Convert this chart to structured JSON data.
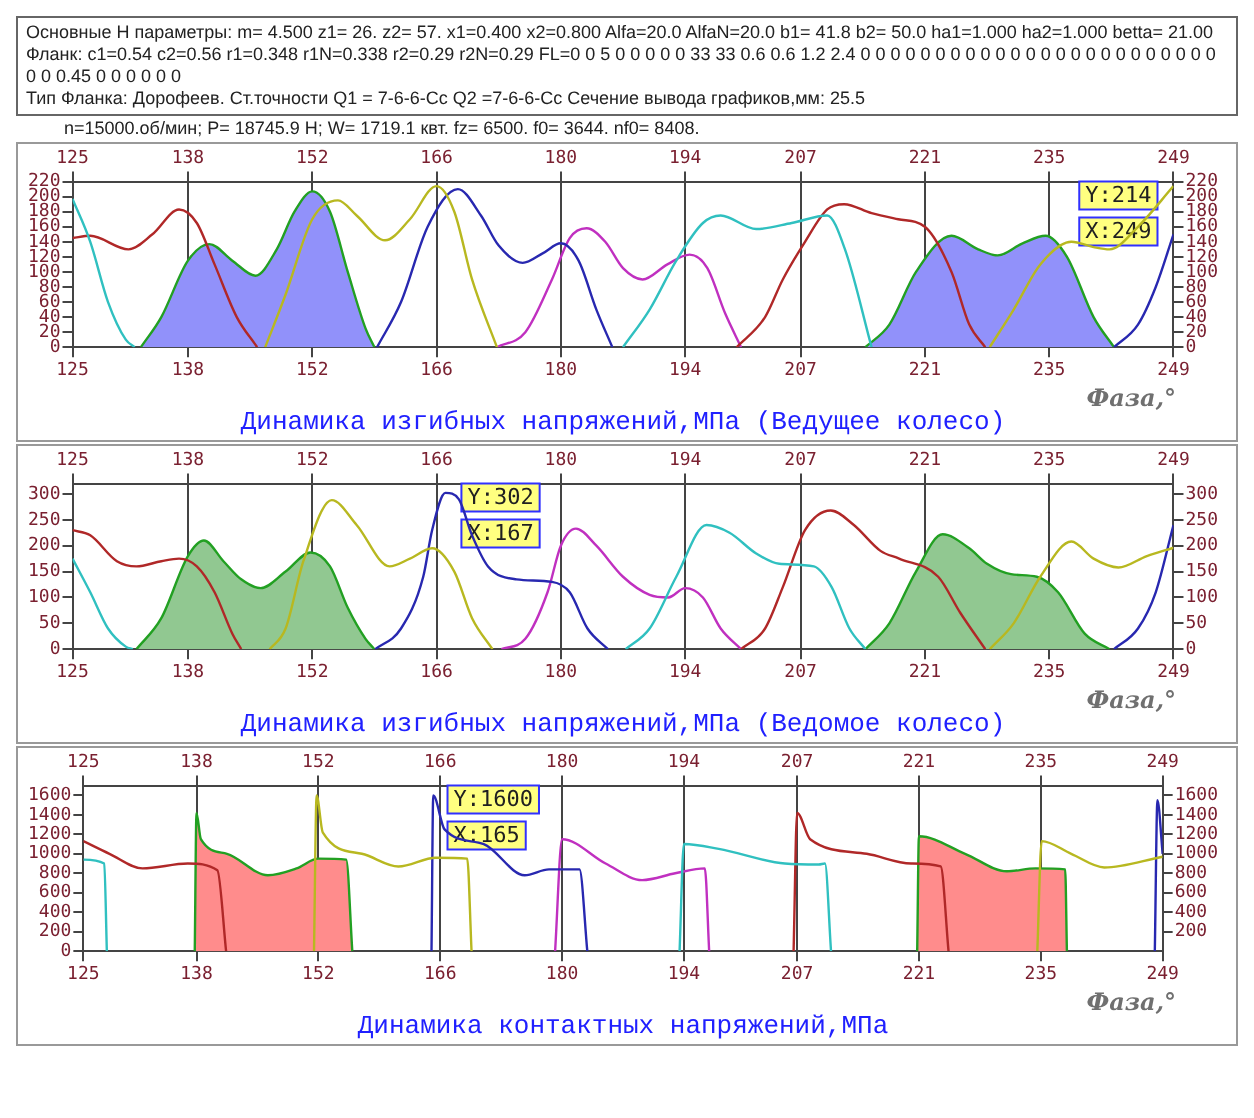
{
  "chart_data": [
    {
      "type": "other",
      "annotations": [
        "Основные Н параметры: m= 4.500 z1=  26. z2=  57. x1=0.400 x2=0.800 Alfa=20.0 AlfaN=20.0 b1= 41.8 b2= 50.0 ha1=1.000 ha2=1.000 betta= 21.00",
        "Фланк:  c1=0.54 c2=0.56 r1=0.348 r1N=0.338 r2=0.29 r2N=0.29 FL=0 0 5 0 0 0 0 0 33 33 0.6 0.6 1.2 2.4 0 0 0 0 0 0 0 0 0 0 0 0 0 0 0 0 0 0 0 0 0 0 0 0 0 0 0.45 0 0 0 0 0 0",
        "Тип Фланка: Дорофеев. Ст.точности Q1 = 7-6-6-Сс Q2 =7-6-6-Сс Сечение вывода графиков,мм:  25.5",
        "n=15000.об/мин; P=    18745.9  H; W=   1719.1   квт. fz=  6500. f0=  3644. nf0=  8408."
      ]
    },
    {
      "type": "line",
      "title": "Динамика изгибных напряжений,МПа (Ведущее колесо)",
      "xlabel": "Фаза,°",
      "grid": "x",
      "xlim": [
        125,
        249
      ],
      "xticks": [
        125,
        138,
        152,
        166,
        180,
        194,
        207,
        221,
        235,
        249
      ],
      "x2lim": [
        125,
        249
      ],
      "x2ticks": [
        125,
        138,
        152,
        166,
        180,
        194,
        207,
        221,
        235,
        249
      ],
      "ylim": [
        0,
        220
      ],
      "yticks": [
        0,
        20,
        40,
        60,
        80,
        100,
        120,
        140,
        160,
        180,
        200,
        220
      ],
      "y2lim": [
        0,
        220
      ],
      "y2ticks": [
        0,
        20,
        40,
        60,
        80,
        100,
        120,
        140,
        160,
        180,
        200,
        220
      ],
      "annotations": [
        {
          "text": "Y:214",
          "x": 249,
          "y": 214
        },
        {
          "text": "X:249",
          "x": 249,
          "y": 214
        }
      ],
      "series": [
        {
          "type": "area",
          "color": "#9191fa",
          "x": [
            132.7,
            135,
            138,
            140.4,
            143,
            145.6,
            148,
            150,
            152,
            154,
            156,
            158,
            159,
            159.5,
            214.3,
            217,
            220,
            224,
            227,
            229.2,
            232,
            234.6,
            237,
            240,
            242.3
          ],
          "values": [
            0,
            40,
            115,
            137,
            115,
            95,
            130,
            180,
            207,
            180,
            100,
            25,
            0,
            null,
            0,
            30,
            100,
            148,
            130,
            122,
            138,
            148,
            120,
            40,
            0
          ]
        },
        {
          "type": "line",
          "color": "#30c0c0",
          "x": [
            125,
            127,
            129,
            131,
            132,
            132.5,
            187,
            190,
            193,
            196,
            198,
            202,
            206,
            210,
            212,
            215
          ],
          "values": [
            197,
            140,
            60,
            10,
            0,
            null,
            0,
            50,
            115,
            165,
            175,
            157,
            165,
            175,
            130,
            0
          ]
        },
        {
          "type": "line",
          "color": "#b02828",
          "x": [
            125,
            127,
            131.3,
            134,
            137,
            139,
            141,
            143.5,
            145.8,
            146,
            199.8,
            203,
            205,
            207.5,
            210,
            211.9,
            215,
            218,
            221,
            224,
            226,
            227.8
          ],
          "values": [
            145,
            148,
            130,
            150,
            183,
            165,
            110,
            40,
            0,
            null,
            0,
            40,
            90,
            140,
            183,
            190,
            178,
            170,
            160,
            100,
            30,
            0
          ]
        },
        {
          "type": "line",
          "color": "#b8b820",
          "x": [
            146.7,
            149,
            152,
            154.9,
            157,
            160.2,
            163,
            166,
            168,
            170,
            172.8,
            173,
            228.3,
            231,
            234,
            237.5,
            240,
            241.8,
            245,
            249
          ],
          "values": [
            0,
            70,
            170,
            195,
            175,
            142,
            170,
            214,
            180,
            90,
            0,
            null,
            0,
            50,
            110,
            140,
            133,
            130,
            160,
            214
          ]
        },
        {
          "type": "line",
          "color": "#2828b0",
          "x": [
            159.3,
            162,
            165,
            168.4,
            171,
            173,
            175.7,
            178,
            180,
            182,
            184,
            185.8,
            186,
            242.3,
            245,
            247,
            249
          ],
          "values": [
            0,
            60,
            160,
            210,
            175,
            135,
            112,
            125,
            138,
            115,
            50,
            0,
            null,
            0,
            30,
            80,
            150
          ]
        },
        {
          "type": "line",
          "color": "#c030c0",
          "x": [
            172.8,
            176,
            179,
            181,
            182.9,
            185,
            187,
            189.2,
            192,
            194.5,
            196.5,
            198.5,
            200.3
          ],
          "values": [
            0,
            20,
            90,
            145,
            158,
            140,
            105,
            90,
            110,
            123,
            105,
            45,
            0
          ]
        }
      ]
    },
    {
      "type": "line",
      "title": "Динамика изгибных напряжений,МПа (Ведомое колесо)",
      "xlabel": "Фаза,°",
      "grid": "x",
      "xlim": [
        125,
        249
      ],
      "xticks": [
        125,
        138,
        152,
        166,
        180,
        194,
        207,
        221,
        235,
        249
      ],
      "x2lim": [
        125,
        249
      ],
      "x2ticks": [
        125,
        138,
        152,
        166,
        180,
        194,
        207,
        221,
        235,
        249
      ],
      "ylim": [
        0,
        320
      ],
      "yticks": [
        0,
        50,
        100,
        150,
        200,
        250,
        300
      ],
      "y2lim": [
        0,
        320
      ],
      "y2ticks": [
        0,
        50,
        100,
        150,
        200,
        250,
        300
      ],
      "annotations": [
        {
          "text": "Y:302",
          "x": 167,
          "y": 302
        },
        {
          "text": "X:167",
          "x": 167,
          "y": 302
        }
      ],
      "series": [
        {
          "type": "area",
          "color": "#91c891",
          "x": [
            132.2,
            135,
            138,
            139.8,
            142,
            144,
            146.2,
            149,
            151.8,
            154,
            156,
            158,
            159,
            159.5,
            214.3,
            217,
            220,
            223,
            226,
            228,
            230.7,
            233.6,
            236,
            239,
            241.8
          ],
          "values": [
            0,
            60,
            180,
            210,
            170,
            135,
            118,
            150,
            187,
            160,
            80,
            20,
            0,
            null,
            0,
            50,
            150,
            222,
            195,
            165,
            145,
            140,
            110,
            30,
            0
          ]
        },
        {
          "type": "line",
          "color": "#30c0c0",
          "x": [
            125,
            127,
            129,
            131,
            131.8,
            132,
            187.3,
            190,
            193,
            196.4,
            199,
            202,
            204.6,
            208.5,
            210.5,
            212.5,
            214.3
          ],
          "values": [
            175,
            110,
            40,
            5,
            0,
            null,
            0,
            40,
            140,
            240,
            225,
            185,
            165,
            160,
            120,
            40,
            0
          ]
        },
        {
          "type": "line",
          "color": "#b02828",
          "x": [
            125,
            127,
            130,
            132.2,
            135,
            137,
            139,
            141,
            143,
            144,
            144.5,
            200.3,
            203,
            205,
            207.5,
            210.4,
            213,
            216,
            218.1,
            222.5,
            225,
            227.8
          ],
          "values": [
            230,
            220,
            170,
            160,
            170,
            175,
            160,
            110,
            30,
            0,
            null,
            0,
            40,
            120,
            230,
            268,
            240,
            190,
            175,
            140,
            70,
            0
          ]
        },
        {
          "type": "line",
          "color": "#b8b820",
          "x": [
            147.2,
            149,
            151,
            154.2,
            157,
            160.7,
            163,
            165.5,
            168,
            170,
            172.3,
            172.5,
            228.3,
            231,
            234,
            237.5,
            240,
            242.8,
            246,
            249
          ],
          "values": [
            0,
            40,
            170,
            288,
            240,
            160,
            175,
            195,
            150,
            60,
            0,
            null,
            0,
            50,
            140,
            208,
            175,
            158,
            180,
            196
          ]
        },
        {
          "type": "line",
          "color": "#2828b0",
          "x": [
            159.1,
            162,
            164.5,
            165.5,
            167,
            168.5,
            170,
            171.8,
            175,
            179,
            181,
            183,
            185.3,
            185.5,
            242.3,
            245,
            247,
            249
          ],
          "values": [
            0,
            40,
            140,
            230,
            302,
            290,
            220,
            160,
            135,
            130,
            110,
            40,
            0,
            null,
            0,
            40,
            110,
            240
          ]
        },
        {
          "type": "line",
          "color": "#c030c0",
          "x": [
            173.3,
            176,
            178.5,
            180,
            181.7,
            184,
            187,
            190,
            192.1,
            194,
            196,
            198,
            200.3
          ],
          "values": [
            0,
            20,
            110,
            200,
            233,
            200,
            140,
            105,
            100,
            118,
            100,
            40,
            0
          ]
        }
      ]
    },
    {
      "type": "line",
      "title": "Динамика контактных напряжений,МПа",
      "xlabel": "Фаза,°",
      "grid": "x",
      "xlim": [
        125,
        249
      ],
      "xticks": [
        125,
        138,
        152,
        166,
        180,
        194,
        207,
        221,
        235,
        249
      ],
      "x2lim": [
        125,
        249
      ],
      "x2ticks": [
        125,
        138,
        152,
        166,
        180,
        194,
        207,
        221,
        235,
        249
      ],
      "ylim": [
        0,
        1700
      ],
      "yticks": [
        0,
        200,
        400,
        600,
        800,
        1000,
        1200,
        1400,
        1600
      ],
      "y2lim": [
        0,
        1700
      ],
      "y2ticks": [
        200,
        400,
        600,
        800,
        1000,
        1200,
        1400,
        1600
      ],
      "annotations": [
        {
          "text": "Y:1600",
          "x": 165,
          "y": 1600
        },
        {
          "text": "X:165",
          "x": 165,
          "y": 1600
        }
      ],
      "series": [
        {
          "type": "area",
          "color": "#ff8c8c",
          "x": [
            137.8,
            138,
            138.5,
            141.5,
            146.2,
            149.5,
            152,
            155.2,
            155.9,
            156,
            220.8,
            221,
            226.3,
            231.1,
            234.4,
            237.8,
            238
          ],
          "values": [
            0,
            1420,
            1150,
            1000,
            780,
            850,
            950,
            940,
            0,
            null,
            0,
            1180,
            1000,
            820,
            850,
            840,
            0
          ]
        },
        {
          "type": "line",
          "color": "#30c0c0",
          "x": [
            125,
            127.4,
            127.7,
            128,
            193.5,
            194,
            198,
            205.6,
            209.5,
            210.2,
            210.9
          ],
          "values": [
            940,
            900,
            0,
            null,
            0,
            1100,
            1050,
            900,
            890,
            900,
            0
          ]
        },
        {
          "type": "line",
          "color": "#b02828",
          "x": [
            125,
            128,
            131.8,
            137,
            140.4,
            141.4,
            141.6,
            206.6,
            207,
            208.5,
            215,
            220.1,
            223.5,
            224.4
          ],
          "values": [
            1130,
            1000,
            850,
            900,
            830,
            0,
            null,
            0,
            1420,
            1150,
            1000,
            900,
            870,
            0
          ]
        },
        {
          "type": "line",
          "color": "#b8b820",
          "x": [
            151.5,
            151.8,
            152.5,
            157,
            161.2,
            165.5,
            169.1,
            169.6,
            170,
            234.6,
            235.1,
            238.5,
            242.3,
            249
          ],
          "values": [
            0,
            1600,
            1220,
            1000,
            870,
            960,
            950,
            0,
            null,
            0,
            1130,
            1000,
            860,
            970
          ]
        },
        {
          "type": "line",
          "color": "#2828b0",
          "x": [
            165,
            165.2,
            166.5,
            171,
            175.7,
            178.5,
            182,
            182.9,
            183,
            248.1,
            248.4,
            249
          ],
          "values": [
            0,
            1600,
            1250,
            1100,
            780,
            840,
            840,
            0,
            null,
            0,
            1550,
            1000
          ]
        },
        {
          "type": "line",
          "color": "#c030c0",
          "x": [
            179.2,
            180,
            185,
            189.2,
            193,
            196.4,
            196.9
          ],
          "values": [
            0,
            1150,
            900,
            730,
            800,
            850,
            0
          ]
        }
      ]
    }
  ]
}
